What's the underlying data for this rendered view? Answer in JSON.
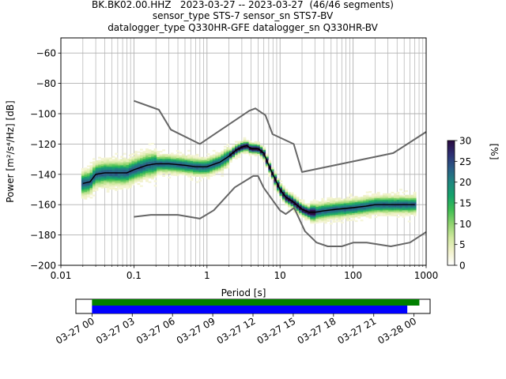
{
  "title_lines": [
    "BK.BK02.00.HHZ   2023-03-27 -- 2023-03-27  (46/46 segments)",
    "sensor_type STS-7 sensor_sn STS7-BV",
    "datalogger_type Q330HR-GFE datalogger_sn Q330HR-BV"
  ],
  "colors": {
    "model_lines": "#666666",
    "mode_line": "#000000",
    "grid": "#b0b0b0",
    "bar_green": "#008000",
    "bar_blue": "#0000ff"
  },
  "chart_data": [
    {
      "type": "heatmap",
      "xlabel": "Period [s]",
      "ylabel": "Power [m²/s⁴/Hz] [dB]",
      "xscale": "log",
      "xlim": [
        0.01,
        1000
      ],
      "ylim": [
        -200,
        -50
      ],
      "xticks": [
        0.01,
        0.1,
        1,
        10,
        100,
        1000
      ],
      "xtick_labels": [
        "0.01",
        "0.1",
        "1",
        "10",
        "100",
        "1000"
      ],
      "yticks": [
        -200,
        -180,
        -160,
        -140,
        -120,
        -100,
        -80,
        -60
      ],
      "ytick_labels": [
        "−200",
        "−180",
        "−160",
        "−140",
        "−120",
        "−100",
        "−80",
        "−60"
      ],
      "grid": true,
      "colorbar": {
        "label": "[%]",
        "range": [
          0,
          30
        ],
        "ticks": [
          0,
          5,
          10,
          15,
          20,
          25,
          30
        ],
        "colormap": [
          "#ffffff",
          "#f2f2cc",
          "#cfe89e",
          "#8fd36e",
          "#3fbe53",
          "#15a36b",
          "#1f8680",
          "#2a5c86",
          "#2d2f73",
          "#2a0a40"
        ]
      },
      "nhnm": {
        "name": "NHNM",
        "x": [
          0.1,
          0.22,
          0.32,
          0.8,
          3.8,
          4.6,
          6.3,
          7.9,
          15.4,
          20,
          354.8,
          1000
        ],
        "y": [
          -91.5,
          -97.4,
          -110.5,
          -120,
          -98,
          -96.5,
          -101,
          -113.5,
          -120,
          -138.5,
          -126,
          -112
        ]
      },
      "nlnm": {
        "name": "NLNM",
        "x": [
          0.1,
          0.17,
          0.4,
          0.8,
          1.24,
          2.4,
          4.3,
          5,
          6,
          10,
          12,
          15.6,
          21.9,
          31.6,
          45,
          70,
          101,
          154,
          328,
          600,
          1000
        ],
        "y": [
          -168,
          -166.7,
          -166.7,
          -169.2,
          -163.7,
          -148.6,
          -141.1,
          -141.1,
          -149,
          -163.8,
          -166.2,
          -162.1,
          -177.5,
          -185,
          -187.5,
          -187.5,
          -185,
          -185,
          -187.5,
          -185,
          -178
        ]
      },
      "mode": {
        "x": [
          0.02,
          0.025,
          0.03,
          0.04,
          0.06,
          0.08,
          0.1,
          0.15,
          0.2,
          0.3,
          0.5,
          0.7,
          1,
          1.5,
          2,
          2.5,
          3,
          3.5,
          4,
          5,
          6,
          7,
          8,
          10,
          12,
          15,
          20,
          25,
          30,
          40,
          60,
          100,
          150,
          200,
          300,
          500,
          700
        ],
        "y": [
          -146,
          -145,
          -140,
          -139,
          -139,
          -139,
          -137,
          -134,
          -133,
          -133,
          -134,
          -135,
          -135,
          -132,
          -128,
          -124,
          -122,
          -121,
          -123,
          -123,
          -126,
          -134,
          -140,
          -150,
          -155,
          -158,
          -163,
          -165,
          -165,
          -164,
          -163,
          -162,
          -161,
          -160,
          -160,
          -160,
          -160
        ]
      },
      "time_axis": {
        "tick_labels": [
          "03-27 00",
          "03-27 03",
          "03-27 06",
          "03-27 09",
          "03-27 12",
          "03-27 15",
          "03-27 18",
          "03-27 21",
          "03-28 00"
        ],
        "hours": [
          0,
          3,
          6,
          9,
          12,
          15,
          18,
          21,
          24
        ],
        "range_hours": [
          -1.2,
          25.2
        ],
        "green_bar_hours": [
          0,
          24.4
        ],
        "blue_bar_hours": [
          0,
          23.5
        ]
      }
    }
  ]
}
